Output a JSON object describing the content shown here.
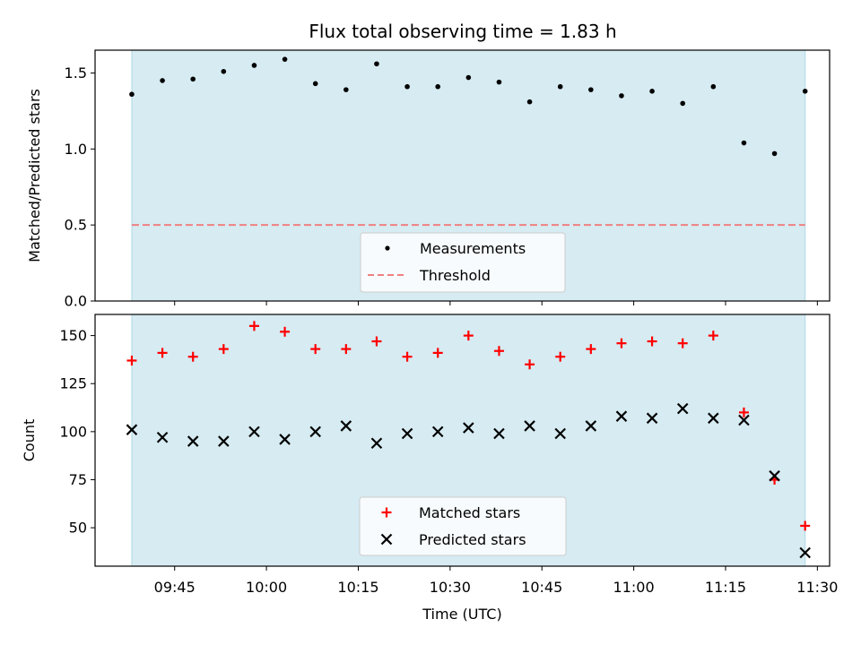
{
  "chart_data": [
    {
      "type": "scatter",
      "title": "Flux total observing time = 1.83 h",
      "ylabel": "Matched/Predicted stars",
      "ylim": [
        0,
        1.65
      ],
      "yticks": [
        "0.0",
        "0.5",
        "1.0",
        "1.5"
      ],
      "shaded_region": {
        "x_start": "09:38",
        "x_end": "11:28",
        "color": "#add8e6"
      },
      "threshold": {
        "name": "Threshold",
        "value": 0.5,
        "color": "#f08080",
        "style": "dashed"
      },
      "series": [
        {
          "name": "Measurements",
          "marker": "dot",
          "color": "#000000",
          "x": [
            "09:38",
            "09:43",
            "09:48",
            "09:53",
            "09:58",
            "10:03",
            "10:08",
            "10:13",
            "10:18",
            "10:23",
            "10:28",
            "10:33",
            "10:38",
            "10:43",
            "10:48",
            "10:53",
            "10:58",
            "11:03",
            "11:08",
            "11:13",
            "11:18",
            "11:23",
            "11:28"
          ],
          "values": [
            1.36,
            1.45,
            1.46,
            1.51,
            1.55,
            1.59,
            1.43,
            1.39,
            1.56,
            1.41,
            1.41,
            1.47,
            1.44,
            1.31,
            1.41,
            1.39,
            1.35,
            1.38,
            1.3,
            1.41,
            1.04,
            0.97,
            1.38
          ]
        }
      ],
      "legend": {
        "placement": "lower center"
      }
    },
    {
      "type": "scatter",
      "xlabel": "Time (UTC)",
      "ylabel": "Count",
      "ylim": [
        30,
        161
      ],
      "xlim": [
        "09:32",
        "11:32"
      ],
      "xticks": [
        "09:45",
        "10:00",
        "10:15",
        "10:30",
        "10:45",
        "11:00",
        "11:15",
        "11:30"
      ],
      "yticks": [
        "50",
        "75",
        "100",
        "125",
        "150"
      ],
      "shaded_region": {
        "x_start": "09:38",
        "x_end": "11:28",
        "color": "#add8e6"
      },
      "series": [
        {
          "name": "Matched stars",
          "marker": "plus",
          "color": "#ff0000",
          "x": [
            "09:38",
            "09:43",
            "09:48",
            "09:53",
            "09:58",
            "10:03",
            "10:08",
            "10:13",
            "10:18",
            "10:23",
            "10:28",
            "10:33",
            "10:38",
            "10:43",
            "10:48",
            "10:53",
            "10:58",
            "11:03",
            "11:08",
            "11:13",
            "11:18",
            "11:23",
            "11:28"
          ],
          "values": [
            137,
            141,
            139,
            143,
            155,
            152,
            143,
            143,
            147,
            139,
            141,
            150,
            142,
            135,
            139,
            143,
            146,
            147,
            146,
            150,
            110,
            75,
            51
          ]
        },
        {
          "name": "Predicted stars",
          "marker": "x",
          "color": "#000000",
          "x": [
            "09:38",
            "09:43",
            "09:48",
            "09:53",
            "09:58",
            "10:03",
            "10:08",
            "10:13",
            "10:18",
            "10:23",
            "10:28",
            "10:33",
            "10:38",
            "10:43",
            "10:48",
            "10:53",
            "10:58",
            "11:03",
            "11:08",
            "11:13",
            "11:18",
            "11:23",
            "11:28"
          ],
          "values": [
            101,
            97,
            95,
            95,
            100,
            96,
            100,
            103,
            94,
            99,
            100,
            102,
            99,
            103,
            99,
            103,
            108,
            107,
            112,
            107,
            106,
            77,
            37
          ]
        }
      ],
      "legend": {
        "placement": "lower center"
      }
    }
  ]
}
